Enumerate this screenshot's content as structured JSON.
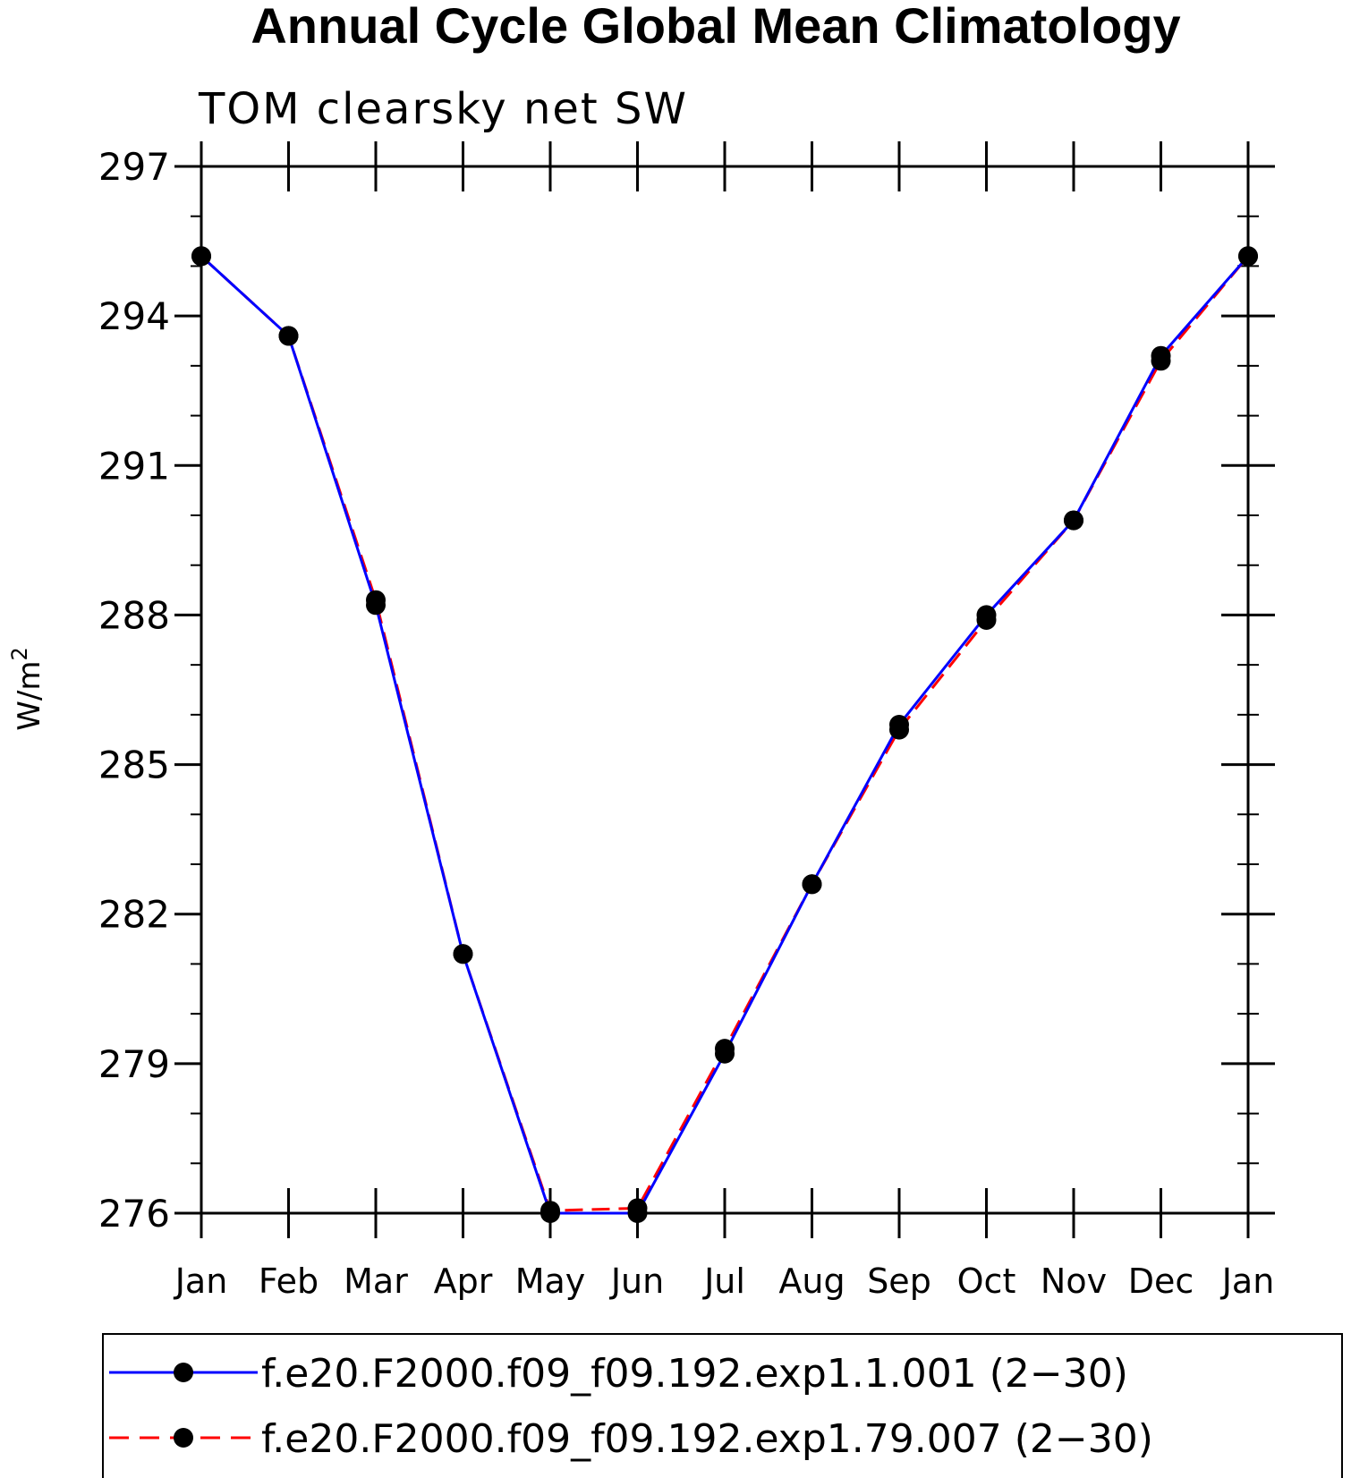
{
  "chart_data": {
    "type": "line",
    "title": "Annual Cycle Global Mean Climatology",
    "subtitle": "TOM clearsky net SW",
    "ylabel": "W/m",
    "ylabel_sup": "2",
    "xlabel": "",
    "categories": [
      "Jan",
      "Feb",
      "Mar",
      "Apr",
      "May",
      "Jun",
      "Jul",
      "Aug",
      "Sep",
      "Oct",
      "Nov",
      "Dec",
      "Jan"
    ],
    "ylim": [
      276,
      297
    ],
    "yticks": [
      276,
      279,
      282,
      285,
      288,
      291,
      294,
      297
    ],
    "yticks_minor_step": 1,
    "series": [
      {
        "name": "f.e20.F2000.f09_f09.192.exp1.1.001 (2−30)",
        "color": "#0000ff",
        "style": "solid",
        "values": [
          295.2,
          293.6,
          288.2,
          281.2,
          276.0,
          276.0,
          279.2,
          282.6,
          285.8,
          288.0,
          289.9,
          293.2,
          295.2
        ]
      },
      {
        "name": "f.e20.F2000.f09_f09.192.exp1.79.007 (2−30)",
        "color": "#ff0000",
        "style": "dashed",
        "values": [
          295.2,
          293.6,
          288.3,
          281.2,
          276.05,
          276.1,
          279.3,
          282.6,
          285.7,
          287.9,
          289.9,
          293.1,
          295.2
        ]
      }
    ],
    "legend_position": "bottom"
  }
}
